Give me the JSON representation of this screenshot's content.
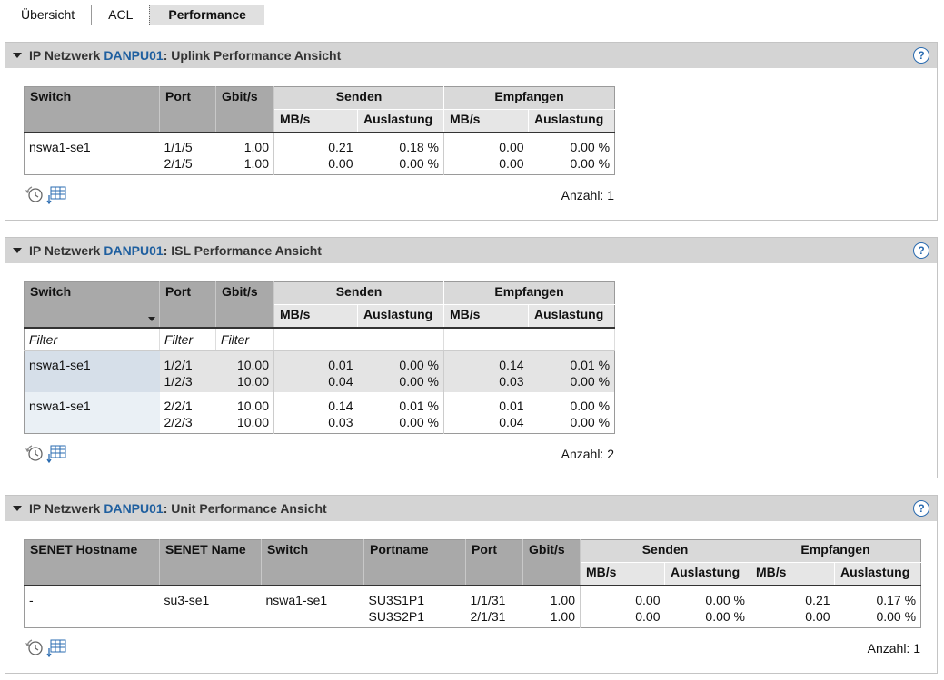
{
  "tabs": [
    "Übersicht",
    "ACL",
    "Performance"
  ],
  "panels": [
    {
      "title_prefix": "IP Netzwerk",
      "title_link": "DANPU01",
      "title_suffix": ": Uplink Performance Ansicht",
      "help": "?",
      "table": {
        "headers": [
          "Switch",
          "Port",
          "Gbit/s"
        ],
        "groups": [
          "Senden",
          "Empfangen"
        ],
        "sub_headers": [
          "MB/s",
          "Auslastung",
          "MB/s",
          "Auslastung"
        ],
        "rows": [
          {
            "lead": [
              "nswa1-se1"
            ],
            "lines": [
              [
                "1/1/5",
                "1.00",
                "0.21",
                "0.18 %",
                "0.00",
                "0.00 %"
              ],
              [
                "2/1/5",
                "1.00",
                "0.00",
                "0.00 %",
                "0.00",
                "0.00 %"
              ]
            ]
          }
        ]
      },
      "count": "Anzahl: 1"
    },
    {
      "title_prefix": "IP Netzwerk",
      "title_link": "DANPU01",
      "title_suffix": ": ISL Performance Ansicht",
      "help": "?",
      "table": {
        "headers": [
          "Switch",
          "Port",
          "Gbit/s"
        ],
        "groups": [
          "Senden",
          "Empfangen"
        ],
        "sub_headers": [
          "MB/s",
          "Auslastung",
          "MB/s",
          "Auslastung"
        ],
        "filters": [
          "Filter",
          "Filter",
          "Filter"
        ],
        "rows": [
          {
            "lead": [
              "nswa1-se1"
            ],
            "lines": [
              [
                "1/2/1",
                "10.00",
                "0.01",
                "0.00 %",
                "0.14",
                "0.01 %"
              ],
              [
                "1/2/3",
                "10.00",
                "0.04",
                "0.00 %",
                "0.03",
                "0.00 %"
              ]
            ]
          },
          {
            "lead": [
              "nswa1-se1"
            ],
            "lines": [
              [
                "2/2/1",
                "10.00",
                "0.14",
                "0.01 %",
                "0.01",
                "0.00 %"
              ],
              [
                "2/2/3",
                "10.00",
                "0.03",
                "0.00 %",
                "0.04",
                "0.00 %"
              ]
            ]
          }
        ]
      },
      "count": "Anzahl: 2"
    },
    {
      "title_prefix": "IP Netzwerk",
      "title_link": "DANPU01",
      "title_suffix": ": Unit Performance Ansicht",
      "help": "?",
      "table": {
        "headers": [
          "SENET Hostname",
          "SENET Name",
          "Switch",
          "Portname",
          "Port",
          "Gbit/s"
        ],
        "groups": [
          "Senden",
          "Empfangen"
        ],
        "sub_headers": [
          "MB/s",
          "Auslastung",
          "MB/s",
          "Auslastung"
        ],
        "rows": [
          {
            "lead": [
              "-",
              "su3-se1",
              "nswa1-se1"
            ],
            "lines": [
              [
                "SU3S1P1",
                "1/1/31",
                "1.00",
                "0.00",
                "0.00 %",
                "0.21",
                "0.17 %"
              ],
              [
                "SU3S2P1",
                "2/1/31",
                "1.00",
                "0.00",
                "0.00 %",
                "0.00",
                "0.00 %"
              ]
            ]
          }
        ]
      },
      "count": "Anzahl: 1"
    }
  ]
}
